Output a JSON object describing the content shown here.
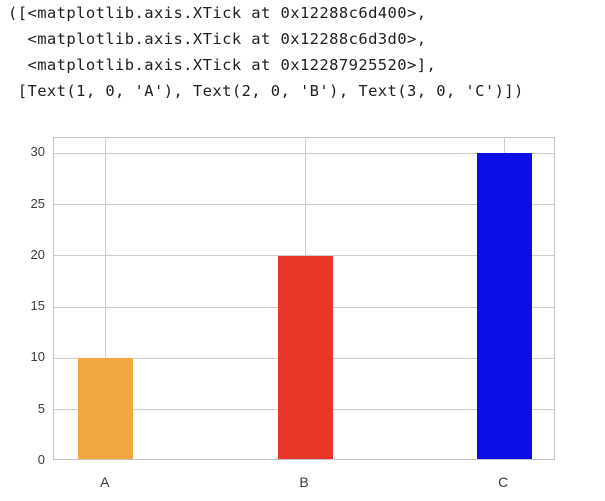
{
  "notebook_output": {
    "repr_lines": [
      "([<matplotlib.axis.XTick at 0x12288c6d400>,",
      "  <matplotlib.axis.XTick at 0x12288c6d3d0>,",
      "  <matplotlib.axis.XTick at 0x12287925520>],",
      " [Text(1, 0, 'A'), Text(2, 0, 'B'), Text(3, 0, 'C')])"
    ]
  },
  "chart_data": {
    "type": "bar",
    "title": "",
    "xlabel": "",
    "ylabel": "",
    "categories": [
      "A",
      "B",
      "C"
    ],
    "x": [
      1,
      2,
      3
    ],
    "values": [
      10,
      20,
      30
    ],
    "bar_colors": [
      "#efa73e",
      "#e93528",
      "#0d0de8"
    ],
    "bar_width_data_units": 0.28,
    "yticks": [
      0,
      5,
      10,
      15,
      20,
      25,
      30
    ],
    "ylim": [
      0,
      31.5
    ],
    "xlim": [
      0.74,
      3.26
    ],
    "grid": true,
    "legend_position": "none",
    "grid_color": "#cccccc",
    "spine_color": "#c4c4c4",
    "tick_label_color": "#3d3d3d",
    "background_color": "#ffffff"
  }
}
